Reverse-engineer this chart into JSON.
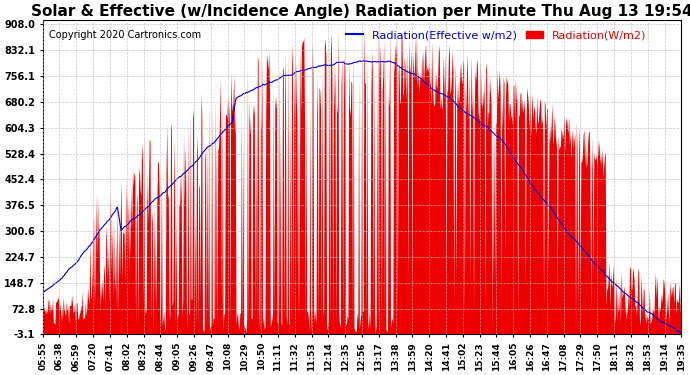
{
  "title": "Solar & Effective (w/Incidence Angle) Radiation per Minute Thu Aug 13 19:54",
  "copyright": "Copyright 2020 Cartronics.com",
  "legend_blue": "Radiation(Effective w/m2)",
  "legend_red": "Radiation(W/m2)",
  "y_ticks": [
    908.0,
    832.1,
    756.1,
    680.2,
    604.3,
    528.4,
    452.4,
    376.5,
    300.6,
    224.7,
    148.7,
    72.8,
    -3.1
  ],
  "ylim": [
    -3.1,
    908.0
  ],
  "background_color": "#ffffff",
  "plot_bg_color": "#ffffff",
  "grid_color": "#bbbbbb",
  "red_color": "#ee0000",
  "blue_color": "#0000dd",
  "title_fontsize": 11,
  "copyright_fontsize": 7,
  "legend_fontsize": 8,
  "tick_fontsize": 7,
  "x_tick_labels": [
    "05:55",
    "06:38",
    "06:59",
    "07:20",
    "07:41",
    "08:02",
    "08:23",
    "08:44",
    "09:05",
    "09:26",
    "09:47",
    "10:08",
    "10:29",
    "10:50",
    "11:11",
    "11:32",
    "11:53",
    "12:14",
    "12:35",
    "12:56",
    "13:17",
    "13:38",
    "13:59",
    "14:20",
    "14:41",
    "15:02",
    "15:23",
    "15:44",
    "16:05",
    "16:26",
    "16:47",
    "17:08",
    "17:29",
    "17:50",
    "18:11",
    "18:32",
    "18:53",
    "19:14",
    "19:35"
  ]
}
